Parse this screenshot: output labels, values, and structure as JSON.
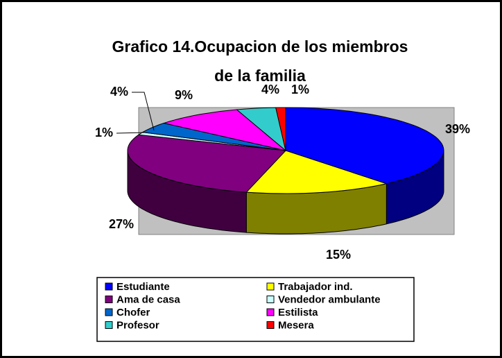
{
  "chart_data": {
    "type": "pie3d",
    "title": "Grafico 14.Ocupacion de los miembros de la familia",
    "categories": [
      "Estudiante",
      "Trabajador ind.",
      "Ama de casa",
      "Vendedor ambulante",
      "Chofer",
      "Estilista",
      "Profesor",
      "Mesera"
    ],
    "values": [
      39,
      15,
      27,
      1,
      4,
      9,
      4,
      1
    ],
    "value_labels": [
      "39%",
      "15%",
      "27%",
      "1%",
      "4%",
      "9%",
      "4%",
      "1%"
    ],
    "colors": [
      "#0000ff",
      "#ffff00",
      "#800080",
      "#ccffff",
      "#0066cc",
      "#ff00ff",
      "#33cccc",
      "#ff0000"
    ],
    "legend": "bottom"
  }
}
